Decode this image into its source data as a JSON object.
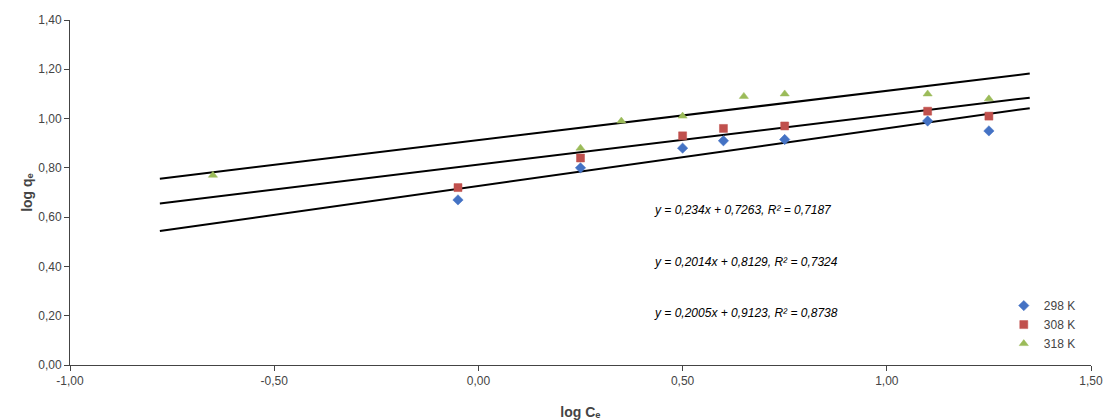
{
  "chart_data": {
    "type": "scatter",
    "xlabel": "log Cₑ",
    "ylabel": "log qₑ",
    "series": [
      {
        "type": "line",
        "color": "black",
        "line_style": "solid",
        "x": [
          -0.78,
          1.35
        ],
        "values": [
          0.54378,
          1.0422
        ]
      },
      {
        "type": "line",
        "color": "black",
        "line_style": "solid",
        "x": [
          -0.78,
          1.35
        ],
        "values": [
          0.655808,
          1.08479
        ]
      },
      {
        "type": "line",
        "color": "black",
        "line_style": "solid",
        "x": [
          -0.78,
          1.35
        ],
        "values": [
          0.75591,
          1.182975
        ]
      },
      {
        "type": "scatter",
        "name": "298 K",
        "color": "#4472C4",
        "marker": "diamond",
        "x": [
          -0.05,
          0.25,
          0.5,
          0.6,
          0.75,
          1.1,
          1.25
        ],
        "values": [
          0.67,
          0.8,
          0.88,
          0.91,
          0.915,
          0.99,
          0.95
        ]
      },
      {
        "type": "scatter",
        "name": "308 K",
        "color": "#C0504D",
        "marker": "square",
        "x": [
          -0.05,
          0.25,
          0.5,
          0.6,
          0.75,
          1.1,
          1.25
        ],
        "values": [
          0.72,
          0.84,
          0.93,
          0.96,
          0.97,
          1.03,
          1.01
        ]
      },
      {
        "type": "scatter",
        "name": "318 K",
        "color": "#9BBB59",
        "marker": "triangle-up",
        "x": [
          -0.65,
          0.25,
          0.35,
          0.5,
          0.65,
          0.75,
          1.1,
          1.25
        ],
        "values": [
          0.77,
          0.88,
          0.99,
          1.01,
          1.09,
          1.1,
          1.1,
          1.08
        ]
      }
    ],
    "annotations": [
      "y = 0,234x + 0,7263, R² = 0,7187",
      "y = 0,2014x + 0,8129, R² = 0,7324",
      "y = 0,2005x + 0,9123, R² = 0,8738"
    ],
    "xlim": [
      -1.0,
      1.5
    ],
    "ylim": [
      0.0,
      1.4
    ],
    "xticks": [
      {
        "value": -1.0,
        "label": "-1,00"
      },
      {
        "value": -0.5,
        "label": "-0,50"
      },
      {
        "value": 0.0,
        "label": "0,00"
      },
      {
        "value": 0.5,
        "label": "0,50"
      },
      {
        "value": 1.0,
        "label": "1,00"
      },
      {
        "value": 1.5,
        "label": "1,50"
      }
    ],
    "yticks": [
      {
        "value": 0.0,
        "label": "0,00"
      },
      {
        "value": 0.2,
        "label": "0,20"
      },
      {
        "value": 0.4,
        "label": "0,40"
      },
      {
        "value": 0.6,
        "label": "0,60"
      },
      {
        "value": 0.8,
        "label": "0,80"
      },
      {
        "value": 1.0,
        "label": "1,00"
      },
      {
        "value": 1.2,
        "label": "1,20"
      },
      {
        "value": 1.4,
        "label": "1,40"
      }
    ],
    "grid": false,
    "legend": "lower right"
  }
}
